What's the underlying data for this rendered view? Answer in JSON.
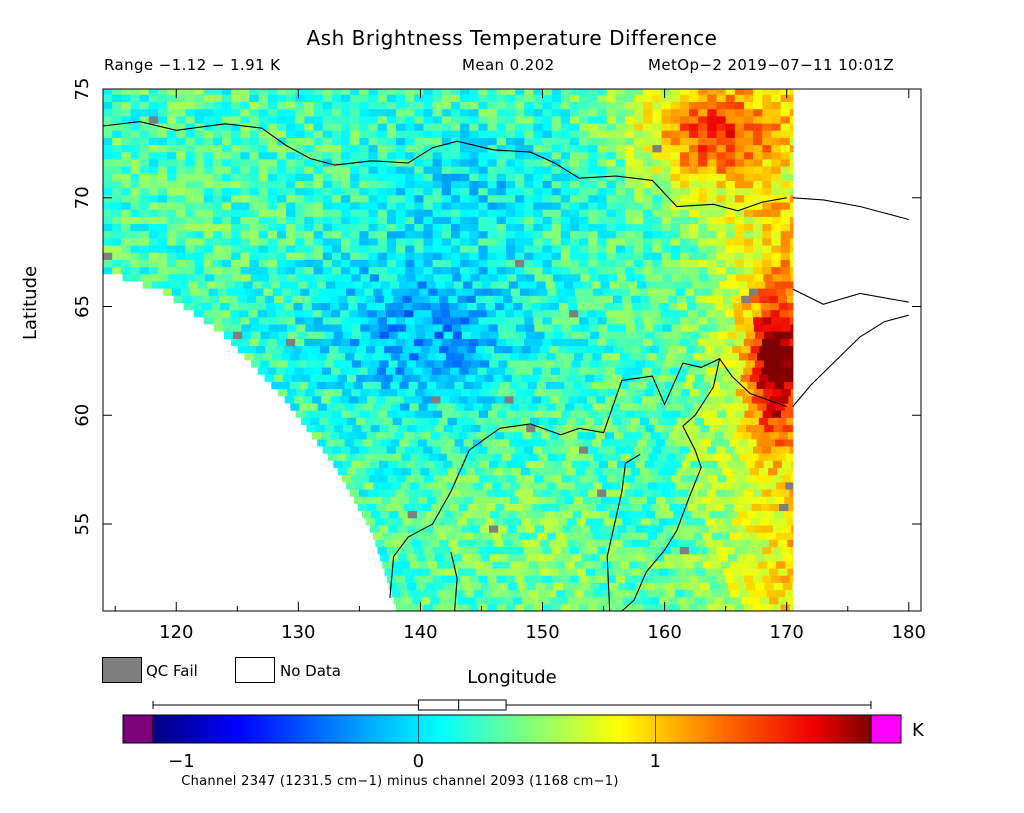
{
  "header": {
    "title": "Ash Brightness Temperature Difference",
    "range": "Range −1.12 − 1.91 K",
    "mean": "Mean 0.202",
    "instrument": "MetOp−2 2019−07−11 10:01Z"
  },
  "legend": {
    "qc_fail": "QC Fail",
    "no_data": "No Data",
    "qc_color": "#7f7f7f"
  },
  "colorbar": {
    "unit": "K",
    "min": -1.12,
    "max": 1.91,
    "ticks": [
      {
        "value": -1,
        "label": "−1"
      },
      {
        "value": 0,
        "label": "0"
      },
      {
        "value": 1,
        "label": "1"
      }
    ],
    "under_color": "#7b007b",
    "over_color": "#ff00ff",
    "boxplot": {
      "whisker_low": -1.12,
      "q1": 0.0,
      "median": 0.17,
      "q3": 0.37,
      "whisker_high": 1.91
    },
    "caption": "Channel 2347 (1231.5 cm−1) minus channel 2093 (1168 cm−1)"
  },
  "chart_data": {
    "type": "heatmap",
    "title": "Ash Brightness Temperature Difference",
    "xlabel": "Longitude",
    "ylabel": "Latitude",
    "xlim": [
      114,
      181
    ],
    "ylim": [
      51,
      75
    ],
    "x_ticks": [
      {
        "value": 120,
        "label": "120"
      },
      {
        "value": 130,
        "label": "130"
      },
      {
        "value": 140,
        "label": "140"
      },
      {
        "value": 150,
        "label": "150"
      },
      {
        "value": 160,
        "label": "160"
      },
      {
        "value": 170,
        "label": "170"
      },
      {
        "value": 180,
        "label": "180"
      }
    ],
    "y_ticks": [
      {
        "value": 55,
        "label": "55"
      },
      {
        "value": 60,
        "label": "60"
      },
      {
        "value": 65,
        "label": "65"
      },
      {
        "value": 70,
        "label": "70"
      },
      {
        "value": 75,
        "label": "75"
      }
    ],
    "value_range": [
      -1.12,
      1.91
    ],
    "mean": 0.202,
    "units": "K",
    "swath": {
      "east_edge_lon": 170.5,
      "west_edge_points": [
        [
          114,
          66.5
        ],
        [
          119,
          65.5
        ],
        [
          124,
          63.5
        ],
        [
          129,
          60.5
        ],
        [
          133,
          57.5
        ],
        [
          136,
          54.5
        ],
        [
          138,
          51.0
        ]
      ]
    },
    "field_regions": [
      {
        "name": "background",
        "value": 0.15
      },
      {
        "name": "southern interior",
        "value": 0.3,
        "lon": [
          140,
          160
        ],
        "lat": [
          51,
          58
        ]
      },
      {
        "name": "central low band",
        "value": -0.4,
        "lon": [
          128,
          150
        ],
        "lat": [
          58,
          69
        ]
      },
      {
        "name": "northern ocean",
        "value": -0.05,
        "lon": [
          130,
          158
        ],
        "lat": [
          69,
          74
        ]
      },
      {
        "name": "northeast high",
        "value": 1.2,
        "lon": [
          153,
          170.5
        ],
        "lat": [
          69,
          75
        ]
      },
      {
        "name": "eastern ridge",
        "value": 1.5,
        "lon": [
          166,
          170.5
        ],
        "lat": [
          59,
          65
        ]
      },
      {
        "name": "eastern margin",
        "value": 0.8,
        "lon": [
          160,
          170.5
        ],
        "lat": [
          51,
          69
        ]
      }
    ]
  }
}
